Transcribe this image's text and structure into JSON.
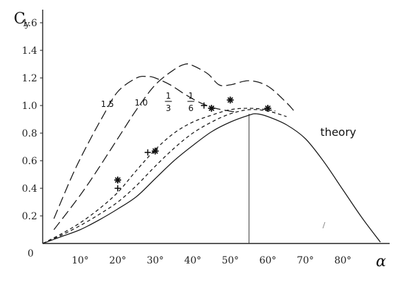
{
  "chart_data": {
    "type": "line",
    "title": "",
    "xlabel": "α",
    "ylabel": "C",
    "ylabel_sub": "y",
    "origin_label": "0",
    "xlim": [
      0,
      92
    ],
    "ylim": [
      0,
      1.75
    ],
    "x_ticks": [
      {
        "value": 10,
        "label": "10°"
      },
      {
        "value": 20,
        "label": "20°"
      },
      {
        "value": 30,
        "label": "30°"
      },
      {
        "value": 40,
        "label": "40°"
      },
      {
        "value": 50,
        "label": "50°"
      },
      {
        "value": 60,
        "label": "60°"
      },
      {
        "value": 70,
        "label": "70°"
      },
      {
        "value": 80,
        "label": "80°"
      }
    ],
    "y_ticks": [
      {
        "value": 0.2,
        "label": "0.2"
      },
      {
        "value": 0.4,
        "label": "0.4"
      },
      {
        "value": 0.6,
        "label": "0.6"
      },
      {
        "value": 0.8,
        "label": "0.8"
      },
      {
        "value": 1.0,
        "label": "1.0"
      },
      {
        "value": 1.2,
        "label": "1.2"
      },
      {
        "value": 1.4,
        "label": "1.4"
      },
      {
        "value": 1.6,
        "label": "1.6"
      }
    ],
    "grid": false,
    "series": [
      {
        "name": "theory",
        "dash": "solid",
        "x": [
          0,
          5,
          10,
          15,
          20,
          25,
          30,
          35,
          40,
          45,
          50,
          55,
          57,
          60,
          65,
          70,
          75,
          80,
          85,
          90
        ],
        "y": [
          0,
          0.05,
          0.1,
          0.17,
          0.25,
          0.34,
          0.47,
          0.6,
          0.71,
          0.81,
          0.88,
          0.93,
          0.94,
          0.92,
          0.86,
          0.76,
          0.59,
          0.39,
          0.19,
          0.01
        ]
      },
      {
        "name": "1/6",
        "dash": "short",
        "x": [
          0,
          5,
          10,
          15,
          20,
          25,
          30,
          35,
          40,
          45,
          50,
          55,
          60,
          65
        ],
        "y": [
          0,
          0.06,
          0.13,
          0.21,
          0.3,
          0.42,
          0.56,
          0.69,
          0.8,
          0.88,
          0.94,
          0.97,
          0.96,
          0.92
        ]
      },
      {
        "name": "1/3",
        "dash": "short",
        "x": [
          0,
          5,
          10,
          15,
          20,
          25,
          30,
          35,
          40,
          45,
          50,
          55,
          60,
          62
        ],
        "y": [
          0,
          0.07,
          0.15,
          0.25,
          0.37,
          0.53,
          0.68,
          0.8,
          0.88,
          0.93,
          0.97,
          0.98,
          0.97,
          0.96
        ]
      },
      {
        "name": "1.0",
        "dash": "long",
        "x": [
          3,
          10,
          15,
          20,
          25,
          30,
          35,
          38,
          40,
          44,
          47,
          50,
          55,
          60,
          65,
          67
        ],
        "y": [
          0.1,
          0.35,
          0.55,
          0.76,
          0.97,
          1.15,
          1.26,
          1.3,
          1.29,
          1.23,
          1.15,
          1.15,
          1.18,
          1.14,
          1.02,
          0.96
        ]
      },
      {
        "name": "1.5",
        "dash": "long",
        "x": [
          3,
          8,
          12,
          16,
          20,
          25,
          28,
          30,
          34,
          38,
          42,
          46,
          52
        ],
        "y": [
          0.18,
          0.5,
          0.72,
          0.92,
          1.1,
          1.2,
          1.21,
          1.2,
          1.15,
          1.08,
          1.02,
          0.98,
          0.95
        ]
      }
    ],
    "markers": [
      {
        "symbol": "*",
        "x": 20,
        "y": 0.46
      },
      {
        "symbol": "+",
        "x": 20,
        "y": 0.4
      },
      {
        "symbol": "+",
        "x": 28,
        "y": 0.66
      },
      {
        "symbol": "*",
        "x": 30,
        "y": 0.67
      },
      {
        "symbol": "+",
        "x": 43,
        "y": 1.0
      },
      {
        "symbol": "*",
        "x": 45,
        "y": 0.98
      },
      {
        "symbol": "*",
        "x": 50,
        "y": 1.04
      },
      {
        "symbol": "*",
        "x": 60,
        "y": 0.98
      }
    ],
    "reference_line": {
      "x": 55,
      "y": 0.94
    },
    "annotations": [
      {
        "text": "1.5",
        "x": 15.5,
        "y": 0.99
      },
      {
        "text": "1.0",
        "x": 24.5,
        "y": 1.0
      },
      {
        "text": "theory",
        "x": 74,
        "y": 0.78
      }
    ],
    "fraction_labels": [
      {
        "numerator": "1",
        "denominator": "3",
        "x": 33.5,
        "y": 1.0
      },
      {
        "numerator": "1",
        "denominator": "6",
        "x": 39.5,
        "y": 1.0
      }
    ]
  }
}
